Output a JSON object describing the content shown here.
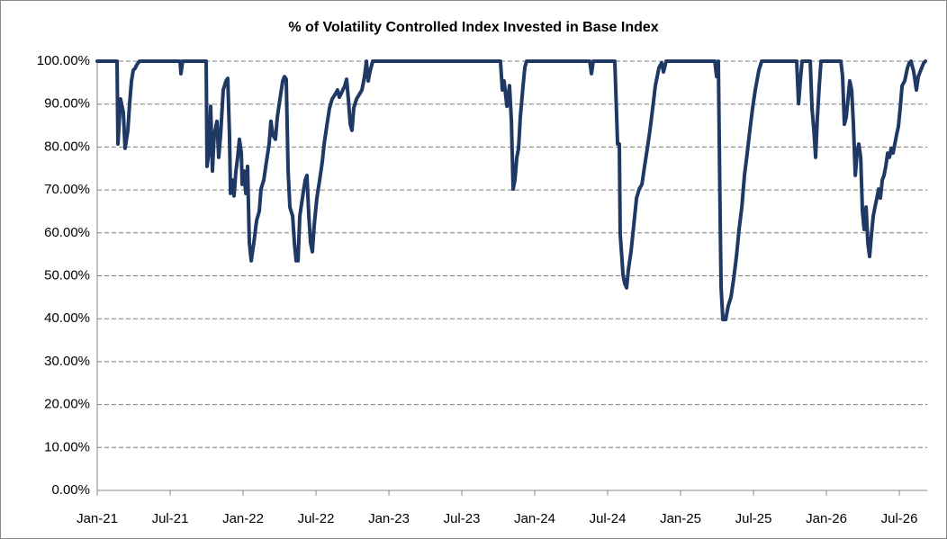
{
  "chart_data": {
    "type": "line",
    "title": "% of Volatility Controlled Index Invested in Base Index",
    "color": "#1f3864",
    "grid": true,
    "xlim": [
      2021.0,
      2026.691
    ],
    "xticks": [
      {
        "value": 2021.0,
        "label": "Jan-21"
      },
      {
        "value": 2021.5,
        "label": "Jul-21"
      },
      {
        "value": 2022.0,
        "label": "Jan-22"
      },
      {
        "value": 2022.5,
        "label": "Jul-22"
      },
      {
        "value": 2023.0,
        "label": "Jan-23"
      },
      {
        "value": 2023.5,
        "label": "Jul-23"
      },
      {
        "value": 2024.0,
        "label": "Jan-24"
      },
      {
        "value": 2024.5,
        "label": "Jul-24"
      },
      {
        "value": 2025.0,
        "label": "Jan-25"
      },
      {
        "value": 2025.5,
        "label": "Jul-25"
      },
      {
        "value": 2026.0,
        "label": "Jan-26"
      },
      {
        "value": 2026.5,
        "label": "Jul-26"
      }
    ],
    "ylim": [
      0,
      100
    ],
    "yticks": [
      {
        "value": 0,
        "label": "0.00%"
      },
      {
        "value": 10,
        "label": "10.00%"
      },
      {
        "value": 20,
        "label": "20.00%"
      },
      {
        "value": 30,
        "label": "30.00%"
      },
      {
        "value": 40,
        "label": "40.00%"
      },
      {
        "value": 50,
        "label": "50.00%"
      },
      {
        "value": 60,
        "label": "60.00%"
      },
      {
        "value": 70,
        "label": "70.00%"
      },
      {
        "value": 80,
        "label": "80.00%"
      },
      {
        "value": 90,
        "label": "90.00%"
      },
      {
        "value": 100,
        "label": "100.00%"
      }
    ],
    "x": [
      2021.0,
      2021.136,
      2021.142,
      2021.16,
      2021.179,
      2021.191,
      2021.21,
      2021.222,
      2021.235,
      2021.247,
      2021.259,
      2021.272,
      2021.29,
      2021.568,
      2021.574,
      2021.586,
      2021.747,
      2021.753,
      2021.765,
      2021.778,
      2021.79,
      2021.802,
      2021.821,
      2021.833,
      2021.846,
      2021.864,
      2021.883,
      2021.895,
      2021.907,
      2021.914,
      2021.926,
      2021.938,
      2021.951,
      2021.963,
      2021.975,
      2021.988,
      2021.994,
      2022.006,
      2022.019,
      2022.031,
      2022.043,
      2022.056,
      2022.074,
      2022.093,
      2022.111,
      2022.123,
      2022.142,
      2022.16,
      2022.179,
      2022.191,
      2022.204,
      2022.222,
      2022.235,
      2022.253,
      2022.272,
      2022.284,
      2022.296,
      2022.309,
      2022.321,
      2022.34,
      2022.352,
      2022.364,
      2022.377,
      2022.389,
      2022.407,
      2022.426,
      2022.438,
      2022.451,
      2022.463,
      2022.475,
      2022.488,
      2022.506,
      2022.525,
      2022.543,
      2022.556,
      2022.574,
      2022.593,
      2022.611,
      2022.63,
      2022.648,
      2022.66,
      2022.679,
      2022.698,
      2022.71,
      2022.722,
      2022.735,
      2022.747,
      2022.759,
      2022.778,
      2022.796,
      2022.815,
      2022.833,
      2022.846,
      2022.858,
      2022.87,
      2022.889,
      2023.765,
      2023.778,
      2023.79,
      2023.809,
      2023.827,
      2023.84,
      2023.852,
      2023.864,
      2023.877,
      2023.889,
      2023.901,
      2023.92,
      2023.932,
      2023.944,
      2024.377,
      2024.389,
      2024.401,
      2024.549,
      2024.568,
      2024.58,
      2024.586,
      2024.599,
      2024.605,
      2024.617,
      2024.63,
      2024.642,
      2024.66,
      2024.679,
      2024.698,
      2024.716,
      2024.735,
      2024.753,
      2024.772,
      2024.79,
      2024.809,
      2024.827,
      2024.852,
      2024.87,
      2024.883,
      2024.901,
      2025.235,
      2025.247,
      2025.259,
      2025.272,
      2025.278,
      2025.29,
      2025.309,
      2025.327,
      2025.346,
      2025.364,
      2025.383,
      2025.401,
      2025.42,
      2025.438,
      2025.457,
      2025.475,
      2025.494,
      2025.512,
      2025.537,
      2025.556,
      2025.796,
      2025.809,
      2025.821,
      2025.833,
      2025.889,
      2025.901,
      2025.914,
      2025.926,
      2025.938,
      2025.951,
      2025.963,
      2026.099,
      2026.111,
      2026.123,
      2026.136,
      2026.148,
      2026.16,
      2026.173,
      2026.185,
      2026.198,
      2026.21,
      2026.222,
      2026.235,
      2026.247,
      2026.259,
      2026.272,
      2026.284,
      2026.296,
      2026.309,
      2026.321,
      2026.333,
      2026.346,
      2026.358,
      2026.37,
      2026.383,
      2026.395,
      2026.407,
      2026.42,
      2026.432,
      2026.444,
      2026.457,
      2026.469,
      2026.481,
      2026.494,
      2026.506,
      2026.519,
      2026.537,
      2026.556,
      2026.568,
      2026.58,
      2026.599,
      2026.617,
      2026.63,
      2026.642,
      2026.654,
      2026.667,
      2026.679
    ],
    "values": [
      100,
      100,
      80.7,
      91.2,
      88.1,
      79.7,
      83.9,
      90.1,
      95.4,
      97.9,
      98.3,
      99.2,
      100,
      100,
      97.1,
      100,
      100,
      75.5,
      78.6,
      89.5,
      74.4,
      82.8,
      86.0,
      77.6,
      82.8,
      93.3,
      95.4,
      96.0,
      82.8,
      69.2,
      72.3,
      68.6,
      74.4,
      77.6,
      81.8,
      78.6,
      71.3,
      74.4,
      69.2,
      75.5,
      57.7,
      53.5,
      57.7,
      62.9,
      65.0,
      70.2,
      72.3,
      76.5,
      80.7,
      86.0,
      82.8,
      81.8,
      87.0,
      91.2,
      95.4,
      96.4,
      95.8,
      74.4,
      66.0,
      63.9,
      57.7,
      53.5,
      53.5,
      63.9,
      68.1,
      72.3,
      73.4,
      63.9,
      57.7,
      55.6,
      61.8,
      68.1,
      72.3,
      76.5,
      80.7,
      84.9,
      89.1,
      91.2,
      92.2,
      93.3,
      91.6,
      92.9,
      94.3,
      95.8,
      91.2,
      85.3,
      83.9,
      89.1,
      91.2,
      92.2,
      93.3,
      96.4,
      100,
      95.4,
      97.5,
      100,
      100,
      93.3,
      95.4,
      89.5,
      94.3,
      86.0,
      70.2,
      72.3,
      77.6,
      79.7,
      87.0,
      94.3,
      98.5,
      100,
      100,
      97.1,
      100,
      100,
      80.7,
      80.7,
      59.7,
      53.5,
      50.3,
      48.2,
      47.2,
      51.4,
      55.6,
      61.8,
      68.1,
      70.2,
      71.3,
      75.5,
      79.7,
      83.9,
      89.1,
      94.3,
      98.5,
      99.6,
      97.5,
      100,
      100,
      96.4,
      100,
      61.8,
      47.2,
      39.8,
      39.8,
      43.0,
      45.1,
      49.3,
      54.5,
      60.8,
      66.0,
      73.4,
      78.6,
      83.9,
      89.1,
      93.3,
      97.9,
      100,
      100,
      90.1,
      95.4,
      100,
      100,
      89.1,
      83.9,
      77.6,
      87.0,
      94.3,
      100,
      100,
      96.4,
      85.3,
      87.0,
      91.2,
      95.4,
      93.3,
      85.3,
      73.4,
      78.6,
      80.7,
      77.6,
      65.0,
      60.8,
      66.0,
      57.7,
      54.5,
      59.7,
      63.9,
      66.0,
      68.1,
      70.2,
      68.1,
      72.3,
      73.4,
      75.5,
      78.6,
      77.6,
      79.7,
      78.6,
      80.7,
      82.8,
      84.9,
      89.1,
      94.3,
      95.4,
      98.5,
      99.6,
      100,
      97.5,
      93.3,
      96.4,
      97.5,
      98.5,
      99.6,
      100
    ]
  }
}
